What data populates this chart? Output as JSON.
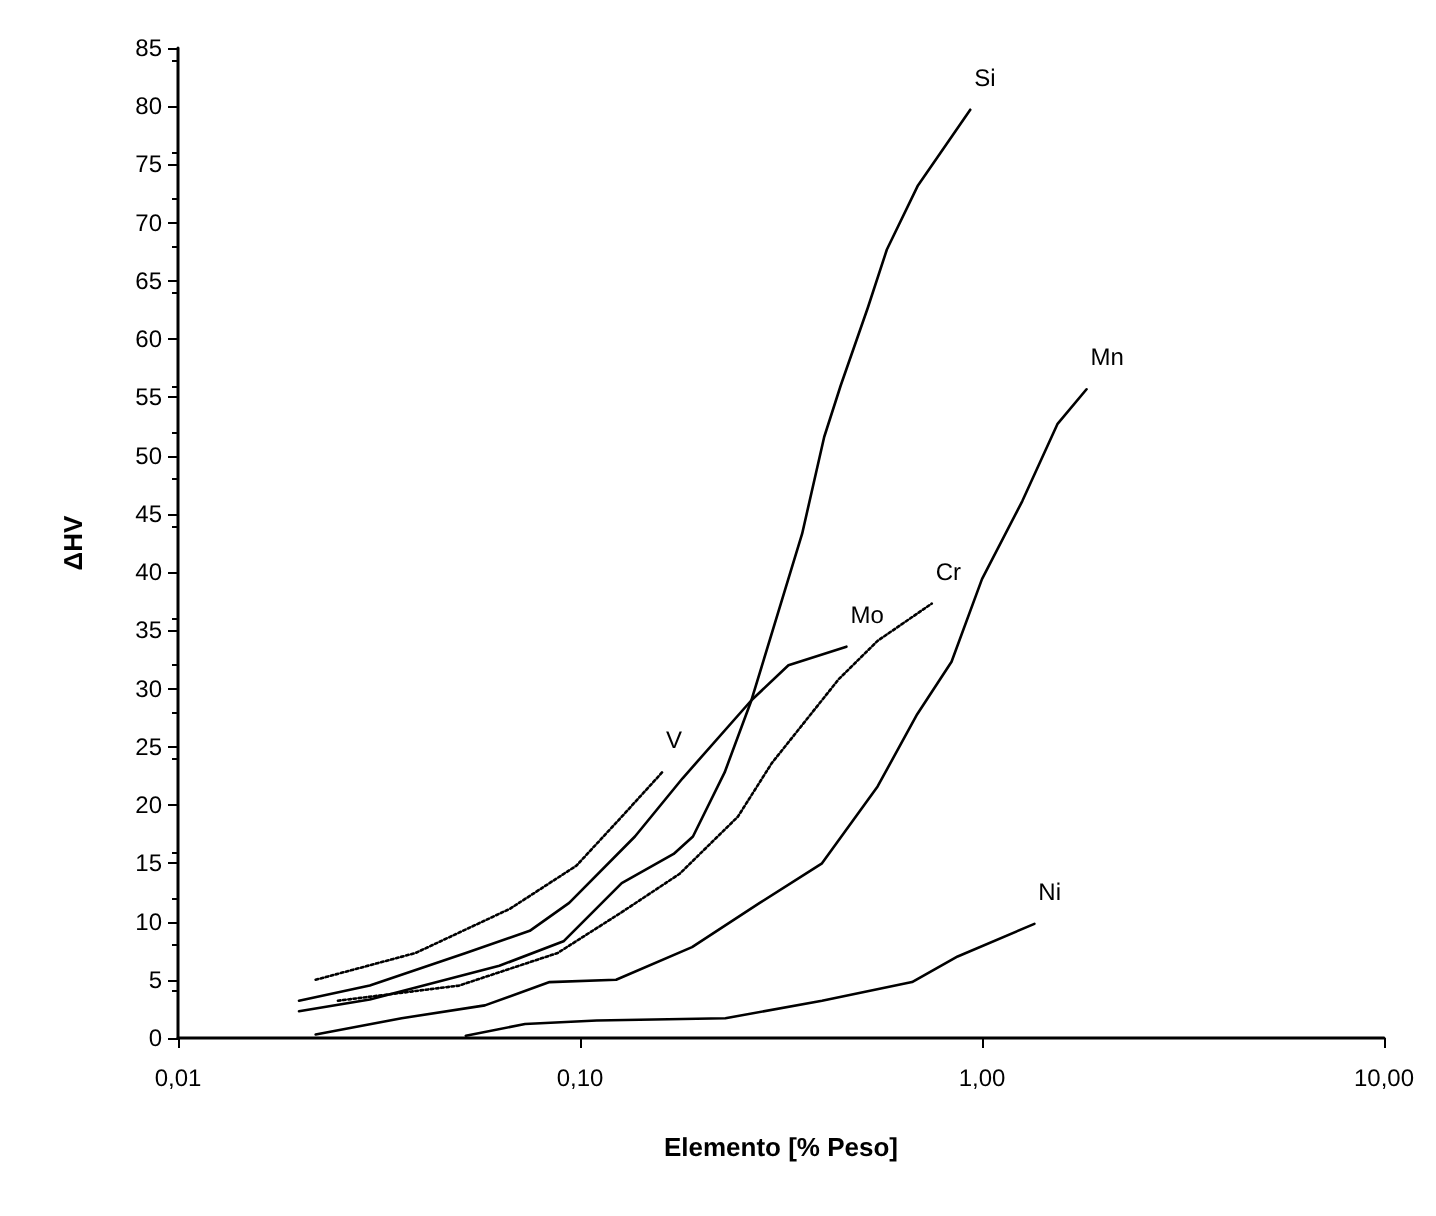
{
  "chart_data": {
    "type": "line",
    "xlabel": "Elemento [% Peso]",
    "ylabel": "ΔHV",
    "log": "x",
    "xlim": [
      0.01,
      10
    ],
    "xticks": [
      {
        "value": 0.01,
        "label": "0,01"
      },
      {
        "value": 0.1,
        "label": "0,10"
      },
      {
        "value": 1,
        "label": "1,00"
      },
      {
        "value": 10,
        "label": "10,00"
      }
    ],
    "ylim": [
      0,
      85
    ],
    "yticks": [
      0,
      5,
      10,
      15,
      20,
      25,
      30,
      35,
      40,
      45,
      50,
      55,
      60,
      65,
      70,
      75,
      80,
      85
    ],
    "grid": false,
    "legend": false,
    "marker": "none",
    "series": [
      {
        "name": "Si",
        "color": "#000000",
        "line_style": "solid",
        "x": [
          0.02,
          0.03,
          0.063,
          0.091,
          0.127,
          0.171,
          0.191,
          0.229,
          0.267,
          0.357,
          0.405,
          0.445,
          0.52,
          0.58,
          0.693,
          0.935
        ],
        "values": [
          2.3,
          3.3,
          6.2,
          8.3,
          13.3,
          15.8,
          17.3,
          22.8,
          29,
          43.3,
          51.6,
          56,
          62.7,
          67.7,
          73.2,
          79.7
        ]
      },
      {
        "name": "Mn",
        "color": "#000000",
        "line_style": "solid",
        "x": [
          0.022,
          0.036,
          0.058,
          0.084,
          0.123,
          0.19,
          0.28,
          0.4,
          0.55,
          0.69,
          0.84,
          1.0,
          1.26,
          1.54,
          1.82
        ],
        "values": [
          0.3,
          1.7,
          2.8,
          4.8,
          5,
          7.8,
          11.6,
          15,
          21.6,
          27.8,
          32.3,
          39.4,
          46.1,
          52.7,
          55.7
        ]
      },
      {
        "name": "Ni",
        "color": "#000000",
        "line_style": "solid",
        "x": [
          0.052,
          0.073,
          0.11,
          0.23,
          0.4,
          0.67,
          0.87,
          1.35
        ],
        "values": [
          0.2,
          1.2,
          1.5,
          1.7,
          3.2,
          4.8,
          7,
          9.8
        ]
      },
      {
        "name": "Mo",
        "color": "#000000",
        "line_style": "solid",
        "x": [
          0.02,
          0.03,
          0.052,
          0.075,
          0.094,
          0.137,
          0.18,
          0.267,
          0.33,
          0.46
        ],
        "values": [
          3.2,
          4.5,
          7.3,
          9.2,
          11.6,
          17.3,
          22.3,
          29,
          32,
          33.6
        ]
      },
      {
        "name": "V",
        "color": "#000000",
        "line_style": "dotted",
        "x": [
          0.022,
          0.039,
          0.067,
          0.098,
          0.127,
          0.16
        ],
        "values": [
          5,
          7.3,
          11.1,
          14.8,
          19,
          22.8
        ]
      },
      {
        "name": "Cr",
        "color": "#000000",
        "line_style": "dotted",
        "x": [
          0.025,
          0.05,
          0.088,
          0.127,
          0.177,
          0.247,
          0.3,
          0.44,
          0.55,
          0.75
        ],
        "values": [
          3.2,
          4.5,
          7.3,
          10.8,
          14.1,
          19,
          23.6,
          30.8,
          34.1,
          37.3
        ]
      }
    ]
  }
}
